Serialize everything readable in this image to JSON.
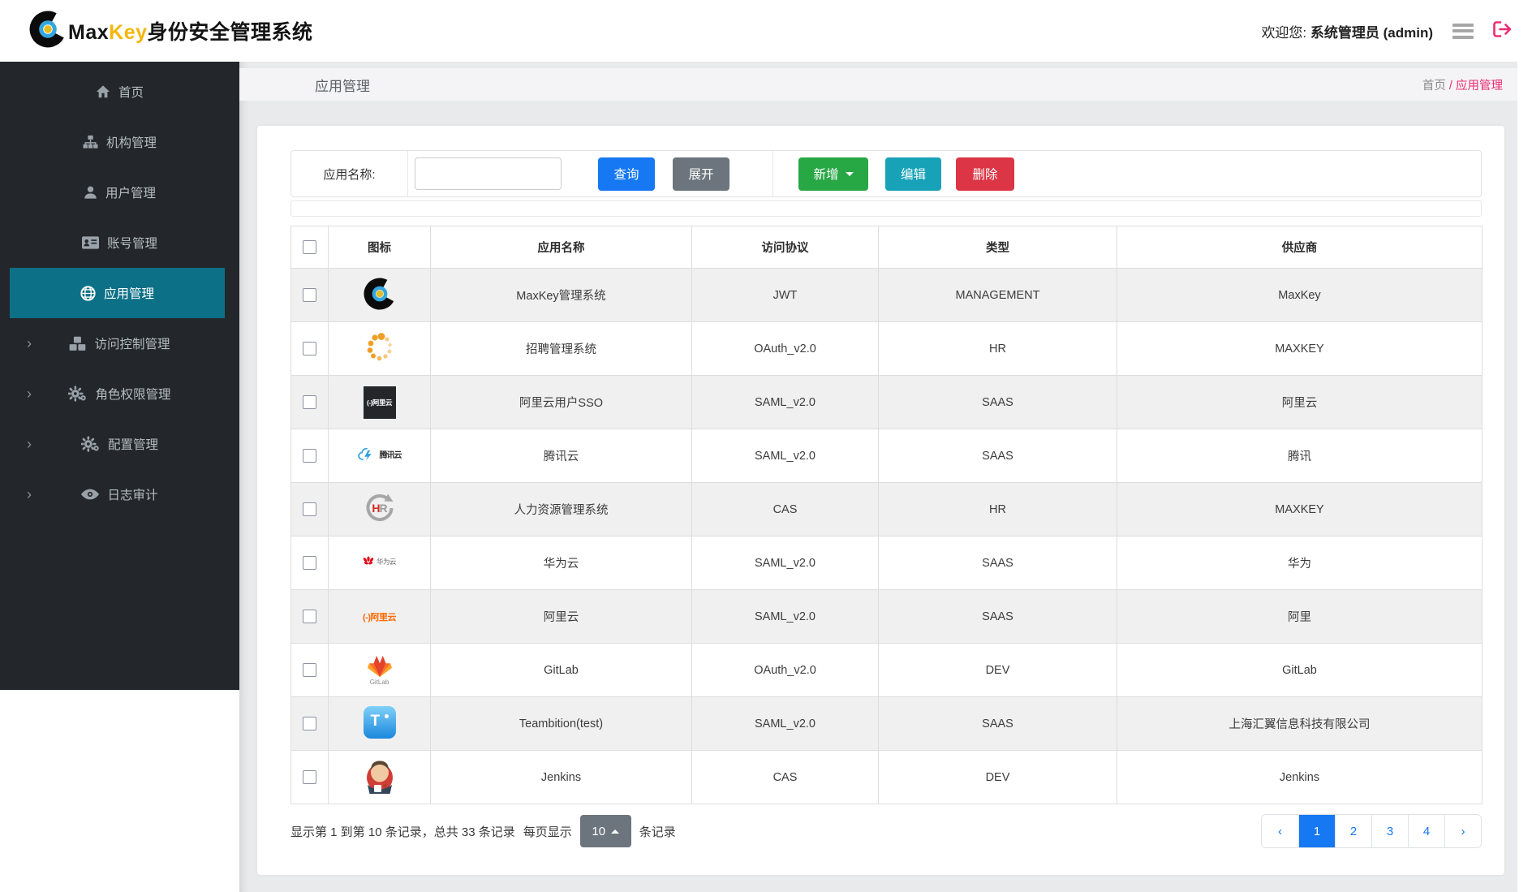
{
  "header": {
    "brand_max": "Max",
    "brand_key": "Key",
    "brand_suffix": "身份安全管理系统",
    "welcome_prefix": "欢迎您: ",
    "welcome_user": "系统管理员 (admin)"
  },
  "sidebar": {
    "items": [
      {
        "label": "首页",
        "icon": "home-icon",
        "active": false,
        "expandable": false
      },
      {
        "label": "机构管理",
        "icon": "org-sitemap-icon",
        "active": false,
        "expandable": false
      },
      {
        "label": "用户管理",
        "icon": "user-icon",
        "active": false,
        "expandable": false
      },
      {
        "label": "账号管理",
        "icon": "account-card-icon",
        "active": false,
        "expandable": false
      },
      {
        "label": "应用管理",
        "icon": "app-globe-icon",
        "active": true,
        "expandable": false
      },
      {
        "label": "访问控制管理",
        "icon": "access-cubes-icon",
        "active": false,
        "expandable": true
      },
      {
        "label": "角色权限管理",
        "icon": "role-gears-icon",
        "active": false,
        "expandable": true
      },
      {
        "label": "配置管理",
        "icon": "config-gears-icon",
        "active": false,
        "expandable": true
      },
      {
        "label": "日志审计",
        "icon": "log-eye-icon",
        "active": false,
        "expandable": true
      }
    ]
  },
  "page": {
    "title": "应用管理",
    "breadcrumb_home": "首页",
    "breadcrumb_sep": " / ",
    "breadcrumb_current": "应用管理"
  },
  "toolbar": {
    "search_label": "应用名称:",
    "search_value": "",
    "query": "查询",
    "expand": "展开",
    "add": "新增",
    "edit": "编辑",
    "del": "删除"
  },
  "table": {
    "headers": [
      "图标",
      "应用名称",
      "访问协议",
      "类型",
      "供应商"
    ],
    "rows": [
      {
        "icon": "maxkey-logo",
        "name": "MaxKey管理系统",
        "protocol": "JWT",
        "type": "MANAGEMENT",
        "vendor": "MaxKey"
      },
      {
        "icon": "recruit-dots-logo",
        "name": "招聘管理系统",
        "protocol": "OAuth_v2.0",
        "type": "HR",
        "vendor": "MAXKEY"
      },
      {
        "icon": "aliyun-dark-logo",
        "name": "阿里云用户SSO",
        "protocol": "SAML_v2.0",
        "type": "SAAS",
        "vendor": "阿里云"
      },
      {
        "icon": "tencent-cloud-logo",
        "name": "腾讯云",
        "protocol": "SAML_v2.0",
        "type": "SAAS",
        "vendor": "腾讯"
      },
      {
        "icon": "hr-logo",
        "name": "人力资源管理系统",
        "protocol": "CAS",
        "type": "HR",
        "vendor": "MAXKEY"
      },
      {
        "icon": "huawei-cloud-logo",
        "name": "华为云",
        "protocol": "SAML_v2.0",
        "type": "SAAS",
        "vendor": "华为"
      },
      {
        "icon": "aliyun-orange-logo",
        "name": "阿里云",
        "protocol": "SAML_v2.0",
        "type": "SAAS",
        "vendor": "阿里"
      },
      {
        "icon": "gitlab-logo",
        "name": "GitLab",
        "protocol": "OAuth_v2.0",
        "type": "DEV",
        "vendor": "GitLab"
      },
      {
        "icon": "teambition-logo",
        "name": "Teambition(test)",
        "protocol": "SAML_v2.0",
        "type": "SAAS",
        "vendor": "上海汇翼信息科技有限公司"
      },
      {
        "icon": "jenkins-logo",
        "name": "Jenkins",
        "protocol": "CAS",
        "type": "DEV",
        "vendor": "Jenkins"
      }
    ]
  },
  "pagination": {
    "summary": "显示第 1 到第 10 条记录，总共 33 条记录",
    "per_page_label": "每页显示",
    "page_size": "10",
    "per_page_suffix": "条记录",
    "pages": [
      {
        "label": "‹",
        "active": false
      },
      {
        "label": "1",
        "active": true
      },
      {
        "label": "2",
        "active": false
      },
      {
        "label": "3",
        "active": false
      },
      {
        "label": "4",
        "active": false
      },
      {
        "label": "›",
        "active": false
      }
    ]
  },
  "colors": {
    "sidebar_bg": "#23272b",
    "active_teal": "#0c7086",
    "primary_blue": "#1678f3",
    "green": "#28a745",
    "gray": "#6c757d",
    "cyan": "#17a2b8",
    "red": "#dc3545",
    "pink": "#ed2d70",
    "brand_gold": "#f5b60a"
  }
}
